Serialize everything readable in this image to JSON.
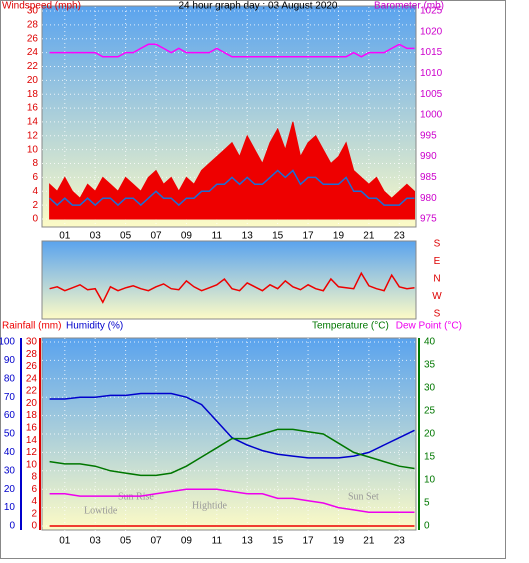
{
  "chart_data": [
    {
      "type": "line",
      "title": "24 hour graph day : 03 August 2020",
      "y_label": "Windspeed (mph)",
      "y2_label": "Barometer (mb)",
      "y_color": "#dd0000",
      "y2_color": "#cc00cc",
      "grid": true,
      "xlim": [
        -0.5,
        24.1
      ],
      "xticks": [
        {
          "value": 1,
          "label": "01"
        },
        {
          "value": 3,
          "label": "03"
        },
        {
          "value": 5,
          "label": "05"
        },
        {
          "value": 7,
          "label": "07"
        },
        {
          "value": 9,
          "label": "09"
        },
        11,
        13,
        15,
        17,
        19,
        21,
        23
      ],
      "ylim": [
        0,
        30
      ],
      "yticks": [
        0,
        2,
        4,
        6,
        8,
        10,
        12,
        14,
        16,
        18,
        20,
        22,
        24,
        26,
        28,
        30
      ],
      "y2lim": [
        975,
        1025
      ],
      "y2ticks": [
        975,
        980,
        985,
        990,
        995,
        1000,
        1005,
        1010,
        1015,
        1020,
        1025
      ],
      "x": [
        0,
        0.5,
        1,
        1.5,
        2,
        2.5,
        3,
        3.5,
        4,
        4.5,
        5,
        5.5,
        6,
        6.5,
        7,
        7.5,
        8,
        8.5,
        9,
        9.5,
        10,
        10.5,
        11,
        11.5,
        12,
        12.5,
        13,
        13.5,
        14,
        14.5,
        15,
        15.5,
        16,
        16.5,
        17,
        17.5,
        18,
        18.5,
        19,
        19.5,
        20,
        20.5,
        21,
        21.5,
        22,
        22.5,
        23,
        23.5,
        24
      ],
      "series": [
        {
          "color": "#ee0000",
          "fill": true,
          "values": [
            5,
            4,
            6,
            4,
            3,
            5,
            4,
            6,
            5,
            4,
            6,
            5,
            4,
            6,
            7,
            5,
            6,
            4,
            6,
            5,
            7,
            8,
            9,
            10,
            11,
            9,
            12,
            10,
            8,
            11,
            13,
            10,
            14,
            9,
            11,
            12,
            10,
            8,
            9,
            11,
            7,
            6,
            5,
            6,
            4,
            3,
            4,
            5,
            4
          ]
        },
        {
          "color": "#1a6fd6",
          "fill": false,
          "values": [
            3,
            2,
            3,
            2,
            2,
            3,
            2,
            3,
            3,
            2,
            3,
            3,
            2,
            3,
            4,
            3,
            3,
            2,
            3,
            3,
            4,
            4,
            5,
            5,
            6,
            5,
            6,
            5,
            5,
            6,
            7,
            6,
            7,
            5,
            6,
            6,
            5,
            5,
            5,
            6,
            4,
            4,
            3,
            3,
            2,
            2,
            2,
            3,
            3
          ]
        },
        {
          "color": "#ff00ff",
          "fill": false,
          "axis": "y2",
          "values": [
            1015,
            1015,
            1015,
            1015,
            1015,
            1015,
            1015,
            1014,
            1014,
            1014,
            1015,
            1015,
            1016,
            1017,
            1017,
            1016,
            1015,
            1016,
            1015,
            1015,
            1015,
            1015,
            1016,
            1015,
            1014,
            1014,
            1014,
            1014,
            1014,
            1014,
            1014,
            1014,
            1014,
            1014,
            1014,
            1014,
            1014,
            1014,
            1014,
            1014,
            1015,
            1014,
            1015,
            1015,
            1015,
            1016,
            1017,
            1016,
            1016
          ]
        }
      ]
    },
    {
      "type": "line",
      "y_color": "#dd0000",
      "grid": false,
      "xlim": [
        -0.5,
        24.1
      ],
      "ylim": [
        180,
        540
      ],
      "yticks": [
        {
          "value": 540,
          "label": "S"
        },
        {
          "value": 450,
          "label": "E"
        },
        {
          "value": 360,
          "label": "N"
        },
        {
          "value": 270,
          "label": "W"
        },
        {
          "value": 180,
          "label": "S"
        }
      ],
      "x": [
        0,
        0.5,
        1,
        1.5,
        2,
        2.5,
        3,
        3.5,
        4,
        4.5,
        5,
        5.5,
        6,
        6.5,
        7,
        7.5,
        8,
        8.5,
        9,
        9.5,
        10,
        10.5,
        11,
        11.5,
        12,
        12.5,
        13,
        13.5,
        14,
        14.5,
        15,
        15.5,
        16,
        16.5,
        17,
        17.5,
        18,
        18.5,
        19,
        19.5,
        20,
        20.5,
        21,
        21.5,
        22,
        22.5,
        23,
        23.5,
        24
      ],
      "series": [
        {
          "color": "#ee0000",
          "fill": false,
          "values": [
            310,
            320,
            300,
            315,
            330,
            305,
            310,
            240,
            320,
            300,
            315,
            325,
            310,
            300,
            320,
            335,
            310,
            305,
            350,
            320,
            300,
            315,
            330,
            360,
            310,
            300,
            340,
            320,
            300,
            330,
            310,
            350,
            320,
            305,
            330,
            310,
            300,
            360,
            320,
            315,
            310,
            390,
            325,
            310,
            300,
            380,
            320,
            310,
            315
          ]
        }
      ]
    },
    {
      "type": "line",
      "y_color": "#0000cc",
      "y2_color": "#007700",
      "y3_color": "#dd0000",
      "grid": true,
      "annotations": [
        "Lowtide",
        "Sun Rise",
        "Hightide",
        "Sun Set"
      ],
      "xlim": [
        -0.5,
        24.1
      ],
      "xticks": [
        {
          "value": 1,
          "label": "01"
        },
        {
          "value": 3,
          "label": "03"
        },
        {
          "value": 5,
          "label": "05"
        },
        {
          "value": 7,
          "label": "07"
        },
        {
          "value": 9,
          "label": "09"
        },
        11,
        13,
        15,
        17,
        19,
        21,
        23
      ],
      "ylim": [
        0,
        100
      ],
      "yticks": [
        0,
        10,
        20,
        30,
        40,
        50,
        60,
        70,
        80,
        90,
        100
      ],
      "y2lim": [
        0,
        40
      ],
      "y2ticks": [
        0,
        5,
        10,
        15,
        20,
        25,
        30,
        35,
        40
      ],
      "y3lim": [
        0,
        30
      ],
      "y3ticks": [
        0,
        2,
        4,
        6,
        8,
        10,
        12,
        14,
        16,
        18,
        20,
        22,
        24,
        26,
        28,
        30
      ],
      "x": [
        0,
        1,
        2,
        3,
        4,
        5,
        6,
        7,
        8,
        9,
        10,
        11,
        12,
        13,
        14,
        15,
        16,
        17,
        18,
        19,
        20,
        21,
        22,
        23,
        24
      ],
      "series": [
        {
          "name": "Rainfall (mm)",
          "color": "#ee0000",
          "fill": false,
          "axis": "y3",
          "values": [
            0,
            0,
            0,
            0,
            0,
            0,
            0,
            0,
            0,
            0,
            0,
            0,
            0,
            0,
            0,
            0,
            0,
            0,
            0,
            0,
            0,
            0,
            0,
            0,
            0
          ]
        },
        {
          "name": "Humidity (%)",
          "color": "#0000cc",
          "fill": false,
          "values": [
            69,
            69,
            70,
            70,
            71,
            71,
            72,
            72,
            72,
            70,
            66,
            57,
            48,
            44,
            41,
            39,
            38,
            37,
            37,
            37,
            38,
            40,
            44,
            48,
            52
          ]
        },
        {
          "name": "Temperature (°C)",
          "color": "#007700",
          "fill": false,
          "axis": "y2",
          "values": [
            14,
            13.5,
            13.5,
            13,
            12,
            11.5,
            11,
            11,
            11.5,
            13,
            15,
            17,
            19,
            19,
            20,
            21,
            21,
            20.5,
            20,
            18,
            16,
            15,
            14,
            13,
            12.5
          ]
        },
        {
          "name": "Dew Point (°C)",
          "color": "#ee00ee",
          "fill": false,
          "axis": "y2",
          "values": [
            7,
            7,
            6.5,
            6.5,
            6.5,
            6.5,
            6.5,
            7,
            7.5,
            8,
            8,
            8,
            7.5,
            7,
            7,
            6,
            6,
            5.5,
            5,
            4,
            3.5,
            3,
            3,
            3,
            3
          ]
        }
      ]
    }
  ]
}
